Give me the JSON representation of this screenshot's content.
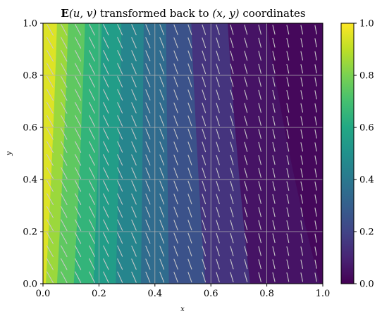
{
  "chart_data": {
    "type": "heatmap",
    "subtype": "filled-contour-with-quiver",
    "title": {
      "bold": "E",
      "math": "(u, v)",
      "text": " transformed back to ",
      "math2": "(x, y)",
      "suffix": " coordinates"
    },
    "xlabel": "x",
    "ylabel": "y",
    "xlim": [
      0.0,
      1.0
    ],
    "ylim": [
      0.0,
      1.0
    ],
    "xticks": [
      "0.0",
      "0.2",
      "0.4",
      "0.6",
      "0.8",
      "1.0"
    ],
    "yticks": [
      "0.0",
      "0.2",
      "0.4",
      "0.6",
      "0.8",
      "1.0"
    ],
    "grid": true,
    "colormap": "viridis",
    "colorbar": {
      "ticks": [
        "0.0",
        "0.2",
        "0.4",
        "0.6",
        "0.8",
        "1.0"
      ],
      "range": [
        0.0,
        1.0
      ]
    },
    "contour_levels": [
      0.0,
      0.1,
      0.2,
      0.3,
      0.4,
      0.5,
      0.6,
      0.7,
      0.8,
      0.9,
      1.0
    ],
    "contour_boundaries": [
      {
        "level": 0.9,
        "x_at_y0": 0.01,
        "x_at_y1": 0.05
      },
      {
        "level": 0.8,
        "x_at_y0": 0.05,
        "x_at_y1": 0.09
      },
      {
        "level": 0.7,
        "x_at_y0": 0.11,
        "x_at_y1": 0.15
      },
      {
        "level": 0.6,
        "x_at_y0": 0.18,
        "x_at_y1": 0.21
      },
      {
        "level": 0.5,
        "x_at_y0": 0.26,
        "x_at_y1": 0.28
      },
      {
        "level": 0.4,
        "x_at_y0": 0.35,
        "x_at_y1": 0.36
      },
      {
        "level": 0.3,
        "x_at_y0": 0.45,
        "x_at_y1": 0.44
      },
      {
        "level": 0.2,
        "x_at_y0": 0.58,
        "x_at_y1": 0.53
      },
      {
        "level": 0.1,
        "x_at_y0": 0.74,
        "x_at_y1": 0.66
      },
      {
        "level": 0.0,
        "x_at_y0": 0.99,
        "x_at_y1": 0.8
      }
    ],
    "quiver": {
      "nx": 20,
      "ny": 20,
      "color": "#c8c8c8",
      "dominant_direction": "down-right"
    }
  }
}
